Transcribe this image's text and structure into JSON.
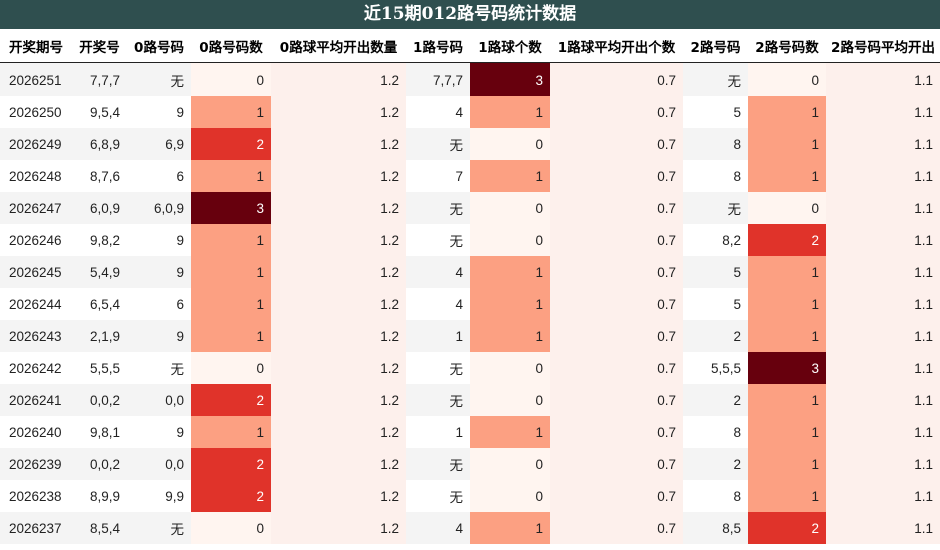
{
  "title": "近15期012路号码统计数据",
  "headers": [
    "开奖期号",
    "开奖号",
    "0路号码",
    "0路号码数",
    "0路球平均开出数量",
    "1路号码",
    "1路球个数",
    "1路球平均开出个数",
    "2路号码",
    "2路号码数",
    "2路号码平均开出"
  ],
  "rows": [
    [
      "2026251",
      "7,7,7",
      "无",
      "0",
      "1.2",
      "7,7,7",
      "3",
      "0.7",
      "无",
      "0",
      "1.1"
    ],
    [
      "2026250",
      "9,5,4",
      "9",
      "1",
      "1.2",
      "4",
      "1",
      "0.7",
      "5",
      "1",
      "1.1"
    ],
    [
      "2026249",
      "6,8,9",
      "6,9",
      "2",
      "1.2",
      "无",
      "0",
      "0.7",
      "8",
      "1",
      "1.1"
    ],
    [
      "2026248",
      "8,7,6",
      "6",
      "1",
      "1.2",
      "7",
      "1",
      "0.7",
      "8",
      "1",
      "1.1"
    ],
    [
      "2026247",
      "6,0,9",
      "6,0,9",
      "3",
      "1.2",
      "无",
      "0",
      "0.7",
      "无",
      "0",
      "1.1"
    ],
    [
      "2026246",
      "9,8,2",
      "9",
      "1",
      "1.2",
      "无",
      "0",
      "0.7",
      "8,2",
      "2",
      "1.1"
    ],
    [
      "2026245",
      "5,4,9",
      "9",
      "1",
      "1.2",
      "4",
      "1",
      "0.7",
      "5",
      "1",
      "1.1"
    ],
    [
      "2026244",
      "6,5,4",
      "6",
      "1",
      "1.2",
      "4",
      "1",
      "0.7",
      "5",
      "1",
      "1.1"
    ],
    [
      "2026243",
      "2,1,9",
      "9",
      "1",
      "1.2",
      "1",
      "1",
      "0.7",
      "2",
      "1",
      "1.1"
    ],
    [
      "2026242",
      "5,5,5",
      "无",
      "0",
      "1.2",
      "无",
      "0",
      "0.7",
      "5,5,5",
      "3",
      "1.1"
    ],
    [
      "2026241",
      "0,0,2",
      "0,0",
      "2",
      "1.2",
      "无",
      "0",
      "0.7",
      "2",
      "1",
      "1.1"
    ],
    [
      "2026240",
      "9,8,1",
      "9",
      "1",
      "1.2",
      "1",
      "1",
      "0.7",
      "8",
      "1",
      "1.1"
    ],
    [
      "2026239",
      "0,0,2",
      "0,0",
      "2",
      "1.2",
      "无",
      "0",
      "0.7",
      "2",
      "1",
      "1.1"
    ],
    [
      "2026238",
      "8,9,9",
      "9,9",
      "2",
      "1.2",
      "无",
      "0",
      "0.7",
      "8",
      "1",
      "1.1"
    ],
    [
      "2026237",
      "8,5,4",
      "无",
      "0",
      "1.2",
      "4",
      "1",
      "0.7",
      "8,5",
      "2",
      "1.1"
    ]
  ],
  "colors": {
    "title_bg": "#2f4f4f",
    "heat_0": "#fff5f0",
    "heat_1": "#fca082",
    "heat_2": "#e0332a",
    "heat_3": "#67000d",
    "avg_bg": "#fdf0ec"
  }
}
